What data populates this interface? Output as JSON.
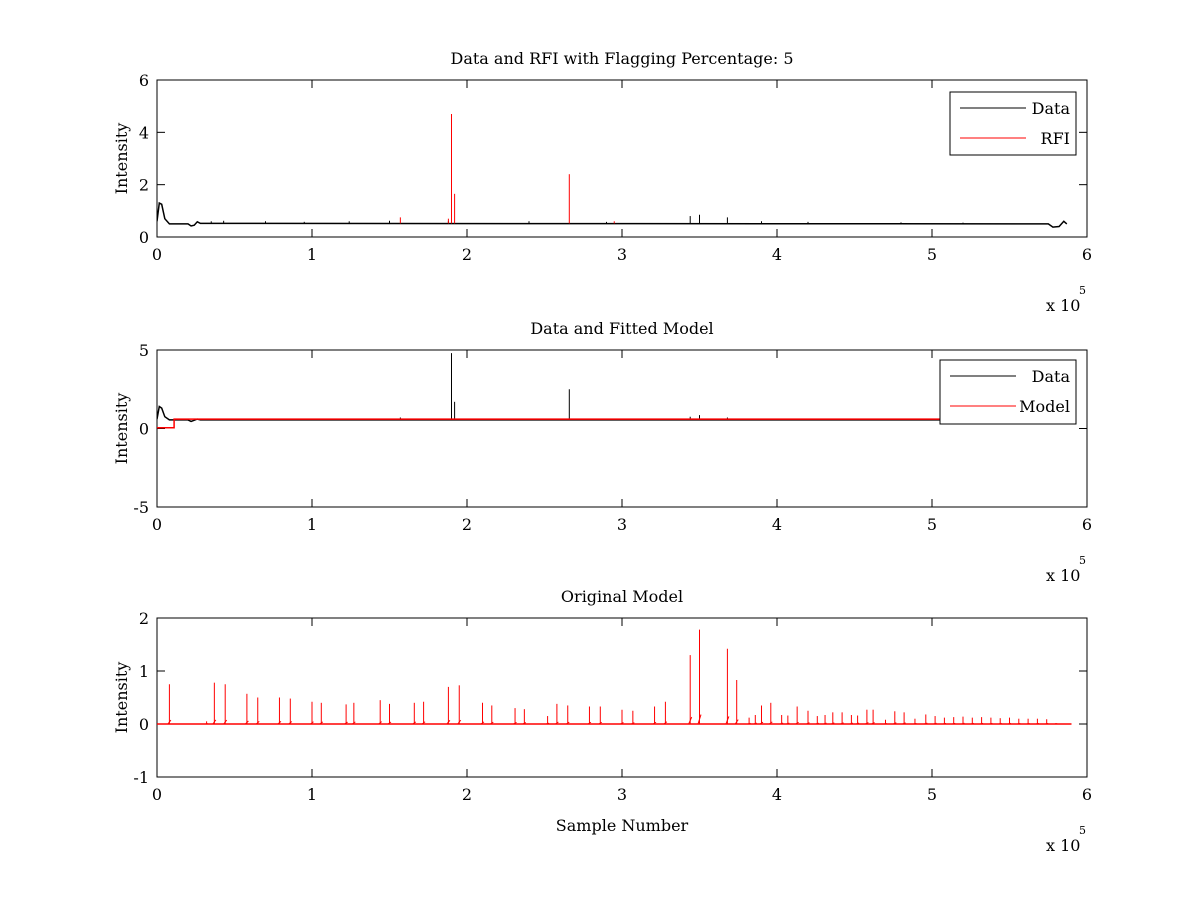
{
  "chart_data": [
    {
      "type": "line",
      "title": "Data and RFI with Flagging Percentage: 5",
      "xlabel": "",
      "ylabel": "Intensity",
      "xlim": [
        0,
        600000
      ],
      "ylim": [
        0,
        6
      ],
      "xticks": [
        0,
        1,
        2,
        3,
        4,
        5,
        6
      ],
      "yticks": [
        0,
        2,
        4,
        6
      ],
      "x_multiplier": {
        "base": "x 10",
        "exponent": "5"
      },
      "grid": false,
      "legend": {
        "placement": "top-right",
        "entries": [
          "Data",
          "RFI"
        ]
      },
      "series": [
        {
          "name": "Data",
          "color": "#000000",
          "baseline": 0.52,
          "points": [
            [
              0,
              0.6
            ],
            [
              1500,
              1.3
            ],
            [
              3000,
              1.25
            ],
            [
              5000,
              0.7
            ],
            [
              8000,
              0.5
            ],
            [
              20000,
              0.5
            ],
            [
              22000,
              0.42
            ],
            [
              24000,
              0.45
            ],
            [
              26000,
              0.58
            ],
            [
              28000,
              0.52
            ],
            [
              575000,
              0.5
            ],
            [
              578000,
              0.38
            ],
            [
              582000,
              0.4
            ],
            [
              585000,
              0.6
            ],
            [
              587000,
              0.5
            ]
          ],
          "spikes": [
            [
              35000,
              0.6
            ],
            [
              43000,
              0.62
            ],
            [
              70000,
              0.6
            ],
            [
              95000,
              0.58
            ],
            [
              124000,
              0.6
            ],
            [
              150000,
              0.62
            ],
            [
              188000,
              0.62
            ],
            [
              240000,
              0.6
            ],
            [
              290000,
              0.58
            ],
            [
              344000,
              0.8
            ],
            [
              350000,
              0.85
            ],
            [
              368000,
              0.75
            ],
            [
              390000,
              0.6
            ],
            [
              420000,
              0.58
            ],
            [
              480000,
              0.56
            ],
            [
              520000,
              0.55
            ]
          ]
        },
        {
          "name": "RFI",
          "color": "#ff0000",
          "baseline": 0.52,
          "points": [],
          "spikes": [
            [
              190000,
              4.7
            ],
            [
              192000,
              1.65
            ],
            [
              188000,
              0.7
            ],
            [
              266000,
              2.4
            ],
            [
              157000,
              0.75
            ],
            [
              295000,
              0.6
            ]
          ]
        }
      ]
    },
    {
      "type": "line",
      "title": "Data and Fitted Model",
      "xlabel": "",
      "ylabel": "Intensity",
      "xlim": [
        0,
        600000
      ],
      "ylim": [
        -5,
        5
      ],
      "xticks": [
        0,
        1,
        2,
        3,
        4,
        5,
        6
      ],
      "yticks": [
        -5,
        0,
        5
      ],
      "x_multiplier": {
        "base": "x 10",
        "exponent": "5"
      },
      "grid": false,
      "legend": {
        "placement": "top-right",
        "entries": [
          "Data",
          "Model"
        ]
      },
      "series": [
        {
          "name": "Data",
          "color": "#000000",
          "baseline": 0.55,
          "points": [
            [
              0,
              0.6
            ],
            [
              1500,
              1.4
            ],
            [
              3000,
              1.3
            ],
            [
              5000,
              0.75
            ],
            [
              8000,
              0.55
            ],
            [
              20000,
              0.55
            ],
            [
              22000,
              0.45
            ],
            [
              26000,
              0.6
            ],
            [
              28000,
              0.55
            ],
            [
              540000,
              0.55
            ]
          ],
          "spikes": [
            [
              190000,
              4.8
            ],
            [
              192000,
              1.7
            ],
            [
              266000,
              2.5
            ],
            [
              157000,
              0.7
            ],
            [
              344000,
              0.75
            ],
            [
              350000,
              0.85
            ],
            [
              368000,
              0.7
            ]
          ]
        },
        {
          "name": "Model",
          "color": "#ff0000",
          "baseline": 0.6,
          "points": [
            [
              0,
              0.05
            ],
            [
              11000,
              0.05
            ],
            [
              11000,
              0.6
            ],
            [
              540000,
              0.6
            ]
          ],
          "spikes": []
        }
      ]
    },
    {
      "type": "line",
      "title": "Original Model",
      "xlabel": "Sample Number",
      "ylabel": "Intensity",
      "xlim": [
        0,
        600000
      ],
      "ylim": [
        -1,
        2
      ],
      "xticks": [
        0,
        1,
        2,
        3,
        4,
        5,
        6
      ],
      "yticks": [
        -1,
        0,
        1,
        2
      ],
      "x_multiplier": {
        "base": "x 10",
        "exponent": "5"
      },
      "grid": false,
      "legend": null,
      "series": [
        {
          "name": "",
          "color": "#ff0000",
          "baseline": 0.0,
          "points": [],
          "spikes": [
            [
              8000,
              0.75
            ],
            [
              32000,
              0.05
            ],
            [
              37000,
              0.78
            ],
            [
              44000,
              0.75
            ],
            [
              58000,
              0.57
            ],
            [
              65000,
              0.5
            ],
            [
              79000,
              0.5
            ],
            [
              86000,
              0.48
            ],
            [
              100000,
              0.42
            ],
            [
              106000,
              0.4
            ],
            [
              122000,
              0.37
            ],
            [
              127000,
              0.4
            ],
            [
              144000,
              0.45
            ],
            [
              150000,
              0.38
            ],
            [
              166000,
              0.4
            ],
            [
              172000,
              0.42
            ],
            [
              188000,
              0.7
            ],
            [
              195000,
              0.73
            ],
            [
              210000,
              0.4
            ],
            [
              216000,
              0.35
            ],
            [
              231000,
              0.3
            ],
            [
              237000,
              0.28
            ],
            [
              252000,
              0.15
            ],
            [
              258000,
              0.38
            ],
            [
              265000,
              0.35
            ],
            [
              279000,
              0.33
            ],
            [
              286000,
              0.33
            ],
            [
              300000,
              0.27
            ],
            [
              307000,
              0.25
            ],
            [
              321000,
              0.33
            ],
            [
              328000,
              0.42
            ],
            [
              344000,
              1.3
            ],
            [
              350000,
              1.78
            ],
            [
              368000,
              1.42
            ],
            [
              374000,
              0.83
            ],
            [
              382000,
              0.12
            ],
            [
              386000,
              0.17
            ],
            [
              390000,
              0.35
            ],
            [
              396000,
              0.4
            ],
            [
              403000,
              0.17
            ],
            [
              407000,
              0.16
            ],
            [
              413000,
              0.33
            ],
            [
              420000,
              0.25
            ],
            [
              426000,
              0.15
            ],
            [
              431000,
              0.17
            ],
            [
              436000,
              0.22
            ],
            [
              442000,
              0.22
            ],
            [
              448000,
              0.17
            ],
            [
              452000,
              0.16
            ],
            [
              458000,
              0.27
            ],
            [
              462000,
              0.27
            ],
            [
              470000,
              0.08
            ],
            [
              476000,
              0.24
            ],
            [
              482000,
              0.22
            ],
            [
              489000,
              0.1
            ],
            [
              496000,
              0.18
            ],
            [
              502000,
              0.15
            ],
            [
              508000,
              0.12
            ],
            [
              514000,
              0.13
            ],
            [
              520000,
              0.14
            ],
            [
              526000,
              0.12
            ],
            [
              532000,
              0.13
            ],
            [
              538000,
              0.12
            ],
            [
              544000,
              0.11
            ],
            [
              550000,
              0.12
            ],
            [
              556000,
              0.1
            ],
            [
              562000,
              0.1
            ],
            [
              568000,
              0.1
            ],
            [
              574000,
              0.09
            ],
            [
              580000,
              0.02
            ]
          ]
        }
      ]
    }
  ]
}
